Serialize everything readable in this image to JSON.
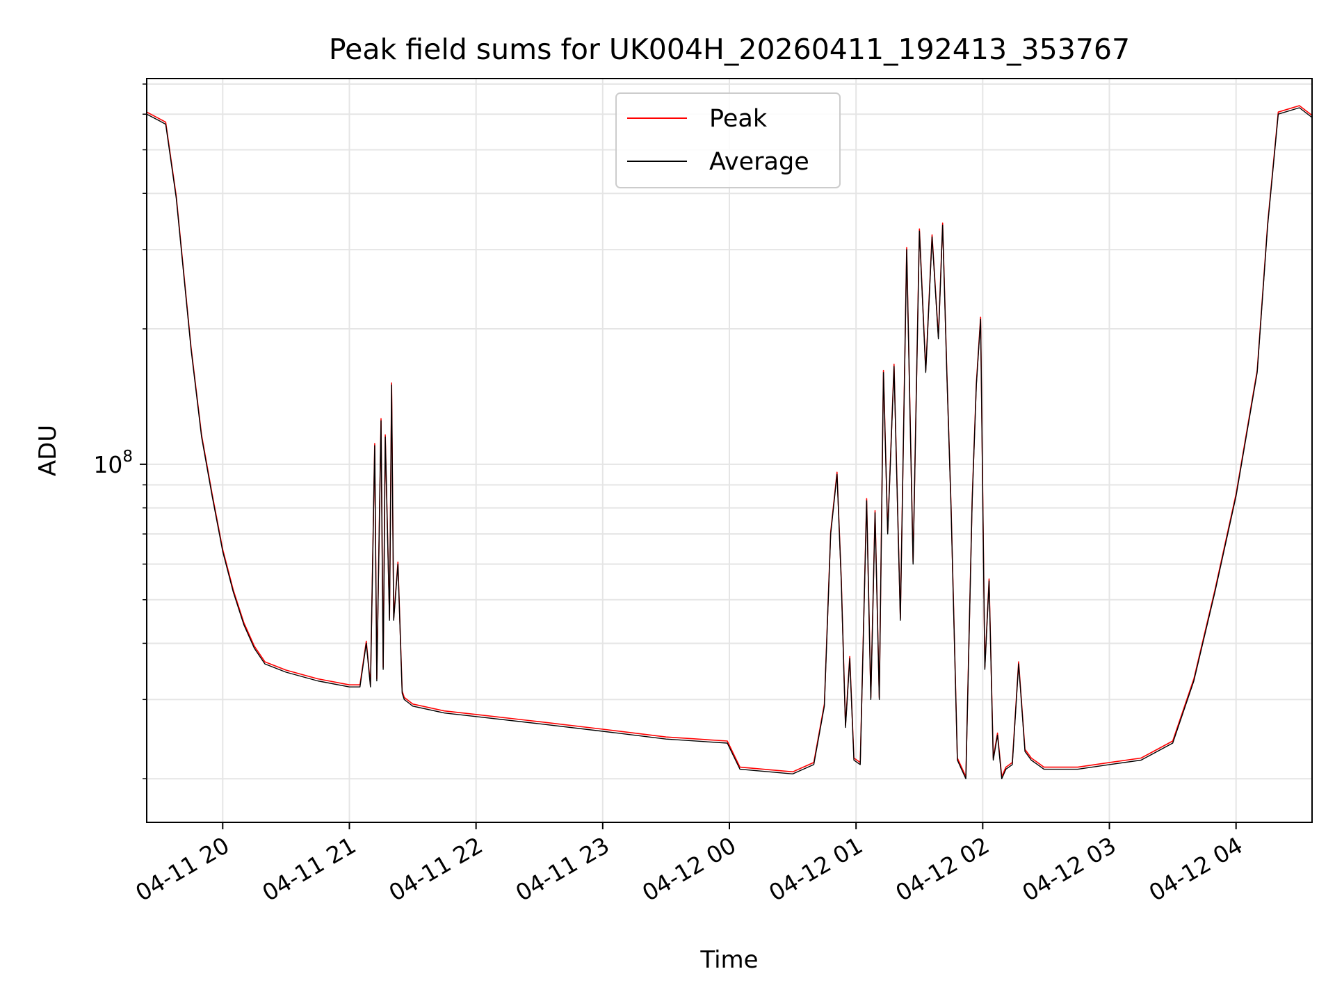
{
  "chart_data": {
    "type": "line",
    "title": "Peak field sums for UK004H_20260411_192413_353767",
    "xlabel": "Time",
    "ylabel": "ADU",
    "y_scale": "log",
    "ylim": [
      16000000,
      720000000
    ],
    "y_ticks": [
      {
        "value": 100000000,
        "base": "10",
        "exponent": "8"
      }
    ],
    "y_minor_ticks": [
      20000000,
      30000000,
      40000000,
      50000000,
      60000000,
      70000000,
      80000000,
      90000000,
      200000000,
      300000000,
      400000000,
      500000000,
      600000000,
      700000000
    ],
    "xlim": [
      "2026-04-11 19:24",
      "2026-04-12 04:36"
    ],
    "x_ticks": [
      {
        "value": "2026-04-11 20:00",
        "label": "04-11 20"
      },
      {
        "value": "2026-04-11 21:00",
        "label": "04-11 21"
      },
      {
        "value": "2026-04-11 22:00",
        "label": "04-11 22"
      },
      {
        "value": "2026-04-11 23:00",
        "label": "04-11 23"
      },
      {
        "value": "2026-04-12 00:00",
        "label": "04-12 00"
      },
      {
        "value": "2026-04-12 01:00",
        "label": "04-12 01"
      },
      {
        "value": "2026-04-12 02:00",
        "label": "04-12 02"
      },
      {
        "value": "2026-04-12 03:00",
        "label": "04-12 03"
      },
      {
        "value": "2026-04-12 04:00",
        "label": "04-12 04"
      }
    ],
    "grid": true,
    "legend_position": "top-center",
    "series": [
      {
        "name": "Peak",
        "color": "#ff0000"
      },
      {
        "name": "Average",
        "color": "#000000"
      }
    ],
    "x": [
      "2026-04-11 19:24",
      "2026-04-11 19:30",
      "2026-04-11 19:33",
      "2026-04-11 19:38",
      "2026-04-11 19:45",
      "2026-04-11 19:50",
      "2026-04-11 19:55",
      "2026-04-11 20:00",
      "2026-04-11 20:05",
      "2026-04-11 20:10",
      "2026-04-11 20:15",
      "2026-04-11 20:20",
      "2026-04-11 20:30",
      "2026-04-11 20:45",
      "2026-04-11 21:00",
      "2026-04-11 21:05",
      "2026-04-11 21:08",
      "2026-04-11 21:10",
      "2026-04-11 21:12",
      "2026-04-11 21:13",
      "2026-04-11 21:15",
      "2026-04-11 21:16",
      "2026-04-11 21:17",
      "2026-04-11 21:19",
      "2026-04-11 21:20",
      "2026-04-11 21:21",
      "2026-04-11 21:23",
      "2026-04-11 21:25",
      "2026-04-11 21:26",
      "2026-04-11 21:28",
      "2026-04-11 21:30",
      "2026-04-11 21:45",
      "2026-04-11 22:00",
      "2026-04-11 22:30",
      "2026-04-11 23:00",
      "2026-04-11 23:30",
      "2026-04-11 23:59",
      "2026-04-12 00:05",
      "2026-04-12 00:30",
      "2026-04-12 00:40",
      "2026-04-12 00:45",
      "2026-04-12 00:48",
      "2026-04-12 00:51",
      "2026-04-12 00:53",
      "2026-04-12 00:55",
      "2026-04-12 00:57",
      "2026-04-12 00:59",
      "2026-04-12 01:02",
      "2026-04-12 01:05",
      "2026-04-12 01:07",
      "2026-04-12 01:09",
      "2026-04-12 01:11",
      "2026-04-12 01:13",
      "2026-04-12 01:15",
      "2026-04-12 01:18",
      "2026-04-12 01:21",
      "2026-04-12 01:24",
      "2026-04-12 01:27",
      "2026-04-12 01:30",
      "2026-04-12 01:33",
      "2026-04-12 01:36",
      "2026-04-12 01:39",
      "2026-04-12 01:41",
      "2026-04-12 01:43",
      "2026-04-12 01:45",
      "2026-04-12 01:48",
      "2026-04-12 01:52",
      "2026-04-12 01:55",
      "2026-04-12 01:57",
      "2026-04-12 01:59",
      "2026-04-12 02:01",
      "2026-04-12 02:03",
      "2026-04-12 02:05",
      "2026-04-12 02:07",
      "2026-04-12 02:09",
      "2026-04-12 02:11",
      "2026-04-12 02:14",
      "2026-04-12 02:17",
      "2026-04-12 02:20",
      "2026-04-12 02:23",
      "2026-04-12 02:26",
      "2026-04-12 02:29",
      "2026-04-12 02:33",
      "2026-04-12 02:45",
      "2026-04-12 03:00",
      "2026-04-12 03:15",
      "2026-04-12 03:30",
      "2026-04-12 03:40",
      "2026-04-12 03:50",
      "2026-04-12 04:00",
      "2026-04-12 04:10",
      "2026-04-12 04:15",
      "2026-04-12 04:20",
      "2026-04-12 04:30",
      "2026-04-12 04:36"
    ],
    "values": [
      600000000,
      580000000,
      570000000,
      390000000,
      180000000,
      115000000,
      85000000,
      64000000,
      52000000,
      44000000,
      39000000,
      36000000,
      34500000,
      33000000,
      32000000,
      32000000,
      40000000,
      32000000,
      110000000,
      33000000,
      125000000,
      35000000,
      115000000,
      45000000,
      150000000,
      45000000,
      60000000,
      31000000,
      30000000,
      29500000,
      29000000,
      28000000,
      27500000,
      26500000,
      25500000,
      24500000,
      24000000,
      21000000,
      20500000,
      21500000,
      29000000,
      70000000,
      95000000,
      55000000,
      26000000,
      37000000,
      22000000,
      21500000,
      83000000,
      30000000,
      78000000,
      30000000,
      160000000,
      70000000,
      165000000,
      45000000,
      300000000,
      60000000,
      330000000,
      160000000,
      320000000,
      190000000,
      340000000,
      160000000,
      80000000,
      22000000,
      20000000,
      83000000,
      150000000,
      210000000,
      35000000,
      55000000,
      22000000,
      25000000,
      20000000,
      21000000,
      21500000,
      36000000,
      23000000,
      22000000,
      21500000,
      21000000,
      21000000,
      21000000,
      21500000,
      22000000,
      24000000,
      33000000,
      52000000,
      85000000,
      160000000,
      340000000,
      600000000,
      620000000,
      590000000
    ]
  }
}
